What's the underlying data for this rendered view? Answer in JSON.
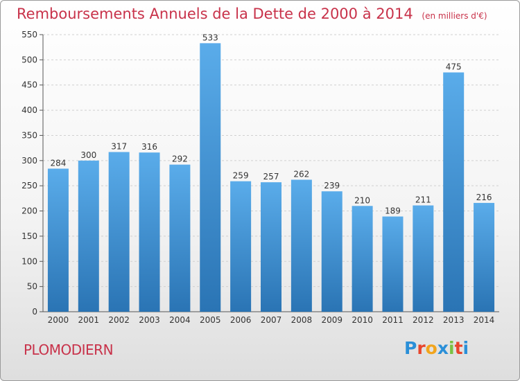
{
  "header": {
    "title": "Remboursements Annuels de la Dette de 2000 à 2014",
    "subtitle": "(en milliers d'€)"
  },
  "footer": {
    "commune": "PLOMODIERN",
    "logo_text": "Proxiti",
    "logo_colors": [
      "#2a8fd8",
      "#e8452c",
      "#f2a51d",
      "#2a8fd8",
      "#7ac143",
      "#e8452c",
      "#2a8fd8"
    ]
  },
  "chart_data": {
    "type": "bar",
    "categories": [
      "2000",
      "2001",
      "2002",
      "2003",
      "2004",
      "2005",
      "2006",
      "2007",
      "2008",
      "2009",
      "2010",
      "2011",
      "2012",
      "2013",
      "2014"
    ],
    "values": [
      284,
      300,
      317,
      316,
      292,
      533,
      259,
      257,
      262,
      239,
      210,
      189,
      211,
      475,
      216
    ],
    "title": "Remboursements Annuels de la Dette de 2000 à 2014",
    "subtitle": "(en milliers d'€)",
    "ylim": [
      0,
      550
    ],
    "yticks": [
      0,
      50,
      100,
      150,
      200,
      250,
      300,
      350,
      400,
      450,
      500,
      550
    ],
    "grid": true,
    "colors": {
      "bar_top": "#5aacea",
      "bar_bottom": "#2a74b4",
      "grid": "#d0d0d0",
      "text": "#333333"
    }
  }
}
